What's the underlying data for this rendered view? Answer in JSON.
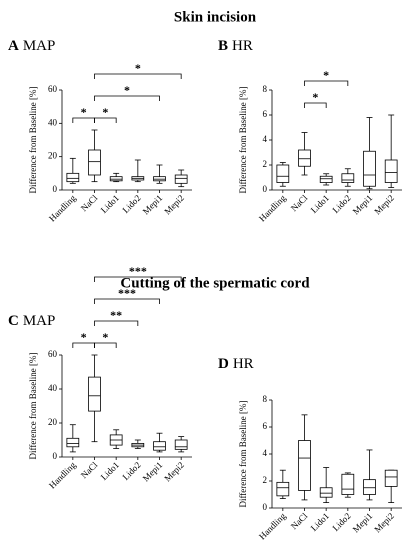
{
  "section_titles": [
    "Skin incision",
    "Cutting of the spermatic cord"
  ],
  "chart_data": [
    {
      "type": "box",
      "panel": "A",
      "title": "MAP",
      "ylabel": "Difference from Baseline [%]",
      "categories": [
        "Handling",
        "NaCl",
        "Lido1",
        "Lido2",
        "Mepi1",
        "Mepi2"
      ],
      "min": [
        4,
        5,
        5,
        5,
        4,
        2
      ],
      "q1": [
        5,
        9,
        5.5,
        6,
        5.5,
        4
      ],
      "median": [
        7,
        17,
        6.5,
        7,
        6.5,
        7
      ],
      "q3": [
        10,
        24,
        8,
        8,
        8,
        9
      ],
      "max": [
        19,
        36,
        10,
        18,
        15,
        12
      ],
      "ylim": [
        0,
        60
      ],
      "yticks": [
        0,
        20,
        40,
        60
      ],
      "brackets": [
        {
          "categories": [
            "Handling",
            "NaCl"
          ],
          "label": "*"
        },
        {
          "categories": [
            "NaCl",
            "Lido1"
          ],
          "label": "*"
        },
        {
          "categories": [
            "NaCl",
            "Mepi1"
          ],
          "label": "*"
        },
        {
          "categories": [
            "NaCl",
            "Mepi2"
          ],
          "label": "*"
        }
      ]
    },
    {
      "type": "box",
      "panel": "B",
      "title": "HR",
      "ylabel": "Difference from Baseline [%]",
      "categories": [
        "Handling",
        "NaCl",
        "Lido1",
        "Lido2",
        "Mepi1",
        "Mepi2"
      ],
      "min": [
        0.3,
        1.2,
        0.4,
        0.3,
        0.1,
        0.2
      ],
      "q1": [
        0.6,
        1.9,
        0.6,
        0.6,
        0.3,
        0.6
      ],
      "median": [
        1.1,
        2.5,
        0.9,
        0.8,
        1.2,
        1.4
      ],
      "q3": [
        2.0,
        3.2,
        1.1,
        1.3,
        3.1,
        2.4
      ],
      "max": [
        2.2,
        4.6,
        1.3,
        1.7,
        5.8,
        6.0
      ],
      "ylim": [
        0,
        8
      ],
      "yticks": [
        0,
        2,
        4,
        6,
        8
      ],
      "brackets": [
        {
          "categories": [
            "NaCl",
            "Lido1"
          ],
          "label": "*"
        },
        {
          "categories": [
            "NaCl",
            "Lido2"
          ],
          "label": "*"
        }
      ]
    },
    {
      "type": "box",
      "panel": "C",
      "title": "MAP",
      "ylabel": "Difference from Baseline [%]",
      "categories": [
        "Handling",
        "NaCl",
        "Lido1",
        "Lido2",
        "Mepi1",
        "Mepi2"
      ],
      "min": [
        3,
        9,
        5,
        5,
        3,
        3
      ],
      "q1": [
        6,
        27,
        7,
        6,
        4,
        4.5
      ],
      "median": [
        8,
        36,
        10,
        7,
        6,
        6
      ],
      "q3": [
        11,
        47,
        13,
        8,
        9,
        10
      ],
      "max": [
        19,
        60,
        16,
        10,
        14,
        12
      ],
      "ylim": [
        0,
        60
      ],
      "yticks": [
        0,
        20,
        40,
        60
      ],
      "brackets": [
        {
          "categories": [
            "Handling",
            "NaCl"
          ],
          "label": "*"
        },
        {
          "categories": [
            "NaCl",
            "Lido1"
          ],
          "label": "*"
        },
        {
          "categories": [
            "NaCl",
            "Lido2"
          ],
          "label": "**"
        },
        {
          "categories": [
            "NaCl",
            "Mepi1"
          ],
          "label": "***"
        },
        {
          "categories": [
            "NaCl",
            "Mepi2"
          ],
          "label": "***"
        }
      ]
    },
    {
      "type": "box",
      "panel": "D",
      "title": "HR",
      "ylabel": "Difference from Baseline [%]",
      "categories": [
        "Handling",
        "NaCl",
        "Lido1",
        "Lido2",
        "Mepi1",
        "Mepi2"
      ],
      "min": [
        0.7,
        0.6,
        0.4,
        0.8,
        0.6,
        0.4
      ],
      "q1": [
        0.9,
        1.3,
        0.8,
        1.0,
        1.0,
        1.6
      ],
      "median": [
        1.5,
        3.7,
        1.1,
        1.4,
        1.5,
        2.3
      ],
      "q3": [
        1.9,
        5.0,
        1.5,
        2.5,
        2.1,
        2.8
      ],
      "max": [
        2.8,
        6.9,
        3.0,
        2.6,
        4.3,
        2.8
      ],
      "ylim": [
        0,
        8
      ],
      "yticks": [
        0,
        2,
        4,
        6,
        8
      ],
      "brackets": []
    }
  ]
}
